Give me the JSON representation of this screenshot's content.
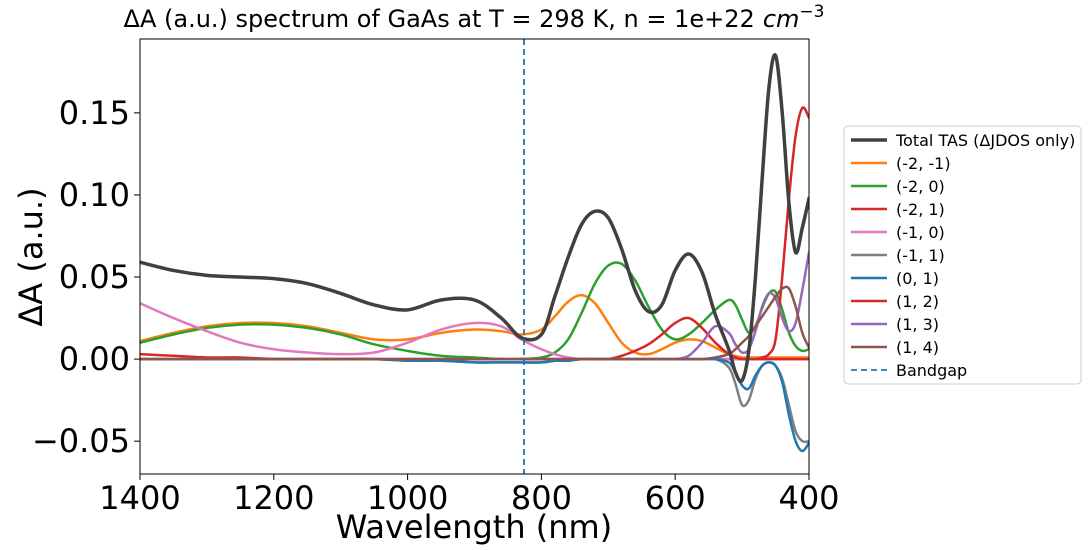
{
  "chart_data": {
    "type": "line",
    "title": "ΔA (a.u.) spectrum of GaAs at T = 298 K, n = 1e+22",
    "title_unit_base": "cm",
    "title_unit_exp": "−3",
    "xlabel": "Wavelength (nm)",
    "ylabel": "ΔA (a.u.)",
    "xlim": [
      1400,
      400
    ],
    "ylim": [
      -0.07,
      0.195
    ],
    "x_inverted": true,
    "xticks": [
      1400,
      1200,
      1000,
      800,
      600,
      400
    ],
    "xtick_labels": [
      "1400",
      "1200",
      "1000",
      "800",
      "600",
      "400"
    ],
    "yticks": [
      -0.05,
      0.0,
      0.05,
      0.1,
      0.15
    ],
    "ytick_labels": [
      "−0.05",
      "0.00",
      "0.05",
      "0.10",
      "0.15"
    ],
    "grid": false,
    "legend_placement": "outside-right",
    "x": [
      1400,
      1350,
      1300,
      1250,
      1200,
      1150,
      1100,
      1050,
      1000,
      950,
      900,
      860,
      830,
      800,
      780,
      760,
      740,
      720,
      700,
      680,
      660,
      640,
      620,
      600,
      580,
      560,
      540,
      520,
      510,
      500,
      490,
      480,
      470,
      460,
      450,
      440,
      430,
      420,
      410,
      400
    ],
    "series": [
      {
        "name": "Total TAS (ΔJDOS only)",
        "color": "#404040",
        "width": 3.5,
        "dash": "",
        "values": [
          0.059,
          0.054,
          0.051,
          0.05,
          0.049,
          0.046,
          0.04,
          0.033,
          0.03,
          0.036,
          0.036,
          0.025,
          0.013,
          0.015,
          0.038,
          0.062,
          0.082,
          0.09,
          0.086,
          0.067,
          0.042,
          0.029,
          0.033,
          0.054,
          0.064,
          0.053,
          0.027,
          0.006,
          -0.008,
          -0.013,
          0.005,
          0.05,
          0.11,
          0.165,
          0.185,
          0.15,
          0.095,
          0.065,
          0.08,
          0.098
        ]
      },
      {
        "name": "(-2, -1)",
        "color": "#ff7f0e",
        "width": 2.5,
        "dash": "",
        "values": [
          0.011,
          0.016,
          0.02,
          0.022,
          0.022,
          0.02,
          0.016,
          0.012,
          0.012,
          0.016,
          0.018,
          0.017,
          0.015,
          0.018,
          0.026,
          0.035,
          0.039,
          0.034,
          0.022,
          0.01,
          0.004,
          0.003,
          0.006,
          0.01,
          0.012,
          0.011,
          0.007,
          0.003,
          0.002,
          0.001,
          0.001,
          0.001,
          0.001,
          0.001,
          0.001,
          0.001,
          0.001,
          0.001,
          0.001,
          0.001
        ]
      },
      {
        "name": "(-2, 0)",
        "color": "#2ca02c",
        "width": 2.5,
        "dash": "",
        "values": [
          0.01,
          0.015,
          0.019,
          0.021,
          0.021,
          0.019,
          0.015,
          0.009,
          0.005,
          0.002,
          0.001,
          0.0,
          0.0,
          0.001,
          0.004,
          0.012,
          0.028,
          0.046,
          0.057,
          0.058,
          0.048,
          0.032,
          0.018,
          0.012,
          0.015,
          0.022,
          0.03,
          0.036,
          0.033,
          0.024,
          0.016,
          0.02,
          0.031,
          0.04,
          0.041,
          0.03,
          0.016,
          0.008,
          0.005,
          0.006
        ]
      },
      {
        "name": "(-2, 1)",
        "color": "#d62728",
        "width": 2.5,
        "dash": "",
        "values": [
          0.003,
          0.002,
          0.001,
          0.001,
          0.0,
          0.0,
          0.0,
          0.0,
          0.0,
          0.0,
          0.0,
          0.0,
          0.0,
          0.0,
          0.0,
          0.0,
          0.0,
          0.0,
          0.0,
          0.0,
          0.0,
          0.0,
          0.0,
          0.0,
          0.0,
          0.0,
          0.0,
          0.0,
          0.0,
          0.0,
          0.0,
          0.0,
          0.001,
          0.003,
          0.012,
          0.05,
          0.098,
          0.136,
          0.153,
          0.147
        ]
      },
      {
        "name": "(-1, 0)",
        "color": "#e377c2",
        "width": 2.5,
        "dash": "",
        "values": [
          0.034,
          0.025,
          0.017,
          0.01,
          0.006,
          0.004,
          0.003,
          0.004,
          0.01,
          0.018,
          0.022,
          0.02,
          0.012,
          0.006,
          0.003,
          0.001,
          0.0,
          0.0,
          0.0,
          0.0,
          0.0,
          0.0,
          0.0,
          0.0,
          0.0,
          0.0,
          0.0,
          0.0,
          0.0,
          0.0,
          0.0,
          0.0,
          0.0,
          0.0,
          0.0,
          0.0,
          0.0,
          0.0,
          0.0,
          0.0
        ]
      },
      {
        "name": "(-1, 1)",
        "color": "#7f7f7f",
        "width": 2.5,
        "dash": "",
        "values": [
          0.0,
          0.0,
          0.0,
          0.0,
          0.0,
          0.0,
          0.0,
          0.0,
          -0.001,
          -0.001,
          -0.002,
          -0.002,
          -0.002,
          -0.002,
          -0.001,
          -0.001,
          0.0,
          0.0,
          0.0,
          0.0,
          0.0,
          0.0,
          0.0,
          0.0,
          0.0,
          0.0,
          0.0,
          -0.005,
          -0.015,
          -0.028,
          -0.025,
          -0.012,
          -0.004,
          -0.002,
          -0.004,
          -0.012,
          -0.028,
          -0.044,
          -0.05,
          -0.05
        ]
      },
      {
        "name": "(0, 1)",
        "color": "#1f77b4",
        "width": 2.5,
        "dash": "",
        "values": [
          0.0,
          0.0,
          0.0,
          0.0,
          0.0,
          0.0,
          0.0,
          0.0,
          -0.001,
          -0.001,
          -0.002,
          -0.002,
          -0.002,
          -0.002,
          -0.001,
          -0.001,
          0.0,
          0.0,
          0.0,
          0.0,
          0.0,
          0.0,
          0.0,
          0.0,
          0.0,
          0.0,
          0.0,
          -0.002,
          -0.008,
          -0.016,
          -0.018,
          -0.01,
          -0.004,
          -0.002,
          -0.004,
          -0.014,
          -0.034,
          -0.05,
          -0.056,
          -0.051
        ]
      },
      {
        "name": "(1, 2)",
        "color": "#d62728",
        "width": 2.5,
        "dash": "",
        "values": [
          0.0,
          0.0,
          0.0,
          0.0,
          0.0,
          0.0,
          0.0,
          0.0,
          0.0,
          0.0,
          0.0,
          0.0,
          0.0,
          0.0,
          0.0,
          0.0,
          0.0,
          0.0,
          0.0,
          0.002,
          0.005,
          0.009,
          0.015,
          0.022,
          0.025,
          0.019,
          0.01,
          0.003,
          0.001,
          0.0,
          0.0,
          0.0,
          0.0,
          0.0,
          0.0,
          0.0,
          0.0,
          0.0,
          0.0,
          0.0
        ]
      },
      {
        "name": "(1, 3)",
        "color": "#9467bd",
        "width": 2.5,
        "dash": "",
        "values": [
          0.0,
          0.0,
          0.0,
          0.0,
          0.0,
          0.0,
          0.0,
          0.0,
          0.0,
          0.0,
          0.0,
          0.0,
          0.0,
          0.0,
          0.0,
          0.0,
          0.0,
          0.0,
          0.0,
          0.0,
          0.0,
          0.0,
          0.0,
          0.0,
          0.002,
          0.01,
          0.02,
          0.016,
          0.009,
          0.004,
          0.006,
          0.017,
          0.032,
          0.04,
          0.037,
          0.025,
          0.017,
          0.022,
          0.042,
          0.065
        ]
      },
      {
        "name": "(1, 4)",
        "color": "#8c564b",
        "width": 2.5,
        "dash": "",
        "values": [
          0.0,
          0.0,
          0.0,
          0.0,
          0.0,
          0.0,
          0.0,
          0.0,
          0.0,
          0.0,
          0.0,
          0.0,
          0.0,
          0.0,
          0.0,
          0.0,
          0.0,
          0.0,
          0.0,
          0.0,
          0.0,
          0.0,
          0.0,
          0.0,
          0.0,
          0.0,
          0.001,
          0.003,
          0.006,
          0.01,
          0.014,
          0.02,
          0.026,
          0.032,
          0.038,
          0.043,
          0.043,
          0.032,
          0.016,
          0.007
        ]
      }
    ],
    "vline": {
      "name": "Bandgap",
      "x": 826,
      "color": "#1f77b4",
      "dash": "6,4"
    }
  }
}
